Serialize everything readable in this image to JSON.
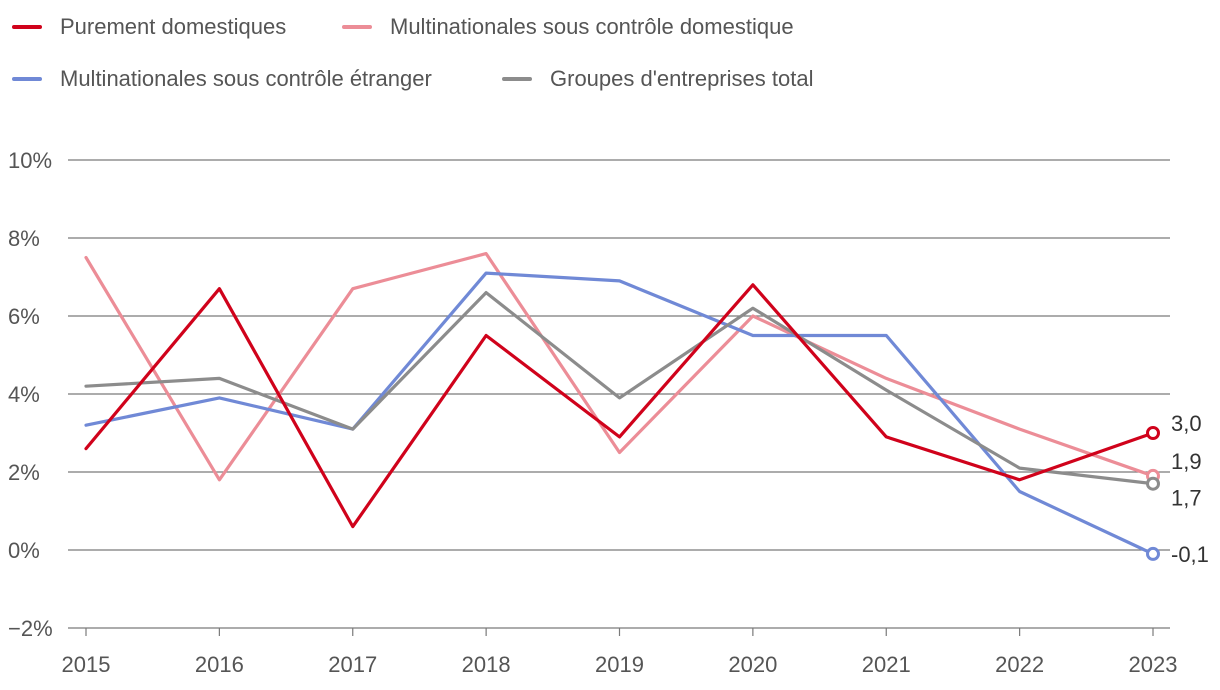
{
  "chart_data": {
    "type": "line",
    "categories": [
      "2015",
      "2016",
      "2017",
      "2018",
      "2019",
      "2020",
      "2021",
      "2022",
      "2023"
    ],
    "y_ticks": [
      "10%",
      "8%",
      "6%",
      "4%",
      "2%",
      "0%",
      "−2%"
    ],
    "y_tick_values": [
      10,
      8,
      6,
      4,
      2,
      0,
      -2
    ],
    "ylim": [
      -2,
      10
    ],
    "grid": true,
    "legend_position": "top-left",
    "series": [
      {
        "name": "Purement domestiques",
        "color": "#d0021b",
        "values": [
          2.6,
          6.7,
          0.6,
          5.5,
          2.9,
          6.8,
          2.9,
          1.8,
          3.0
        ],
        "end_label": "3,0"
      },
      {
        "name": "Multinationales sous contrôle domestique",
        "color": "#ec8d97",
        "values": [
          7.5,
          1.8,
          6.7,
          7.6,
          2.5,
          6.0,
          4.4,
          3.1,
          1.9
        ],
        "end_label": "1,9"
      },
      {
        "name": "Multinationales sous contrôle étranger",
        "color": "#7089d6",
        "values": [
          3.2,
          3.9,
          3.1,
          7.1,
          6.9,
          5.5,
          5.5,
          1.5,
          -0.1
        ],
        "end_label": "-0,1"
      },
      {
        "name": "Groupes d'entreprises total",
        "color": "#8c8c8c",
        "values": [
          4.2,
          4.4,
          3.1,
          6.6,
          3.9,
          6.2,
          4.1,
          2.1,
          1.7
        ],
        "end_label": "1,7"
      }
    ]
  }
}
